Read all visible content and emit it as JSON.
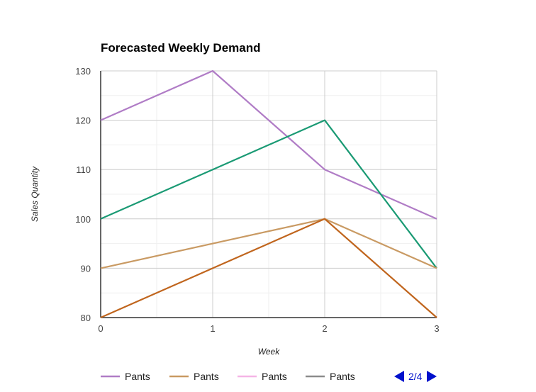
{
  "chart_data": {
    "type": "line",
    "title": "Forecasted Weekly Demand",
    "xlabel": "Week",
    "ylabel": "Sales Quantity",
    "x": [
      0,
      1,
      2,
      3
    ],
    "xlim": [
      0,
      3
    ],
    "ylim": [
      80,
      130
    ],
    "xticks": [
      "0",
      "1",
      "2",
      "3"
    ],
    "yticks": [
      "80",
      "90",
      "100",
      "110",
      "120",
      "130"
    ],
    "grid": true,
    "legend_position": "bottom",
    "series": [
      {
        "color": "#b07cc6",
        "values": [
          120,
          130,
          110,
          100
        ]
      },
      {
        "color": "#1a9a74",
        "values": [
          100,
          110,
          120,
          90
        ]
      },
      {
        "color": "#c99a63",
        "values": [
          90,
          95,
          100,
          90
        ]
      },
      {
        "color": "#c0651d",
        "values": [
          80,
          90,
          100,
          80
        ]
      }
    ],
    "legend": [
      {
        "label": "Pants",
        "color": "#b07cc6"
      },
      {
        "label": "Pants",
        "color": "#c99a63"
      },
      {
        "label": "Pants",
        "color": "#f5b4e6"
      },
      {
        "label": "Pants",
        "color": "#8c8c8c"
      }
    ],
    "legend_page": "2/4"
  }
}
